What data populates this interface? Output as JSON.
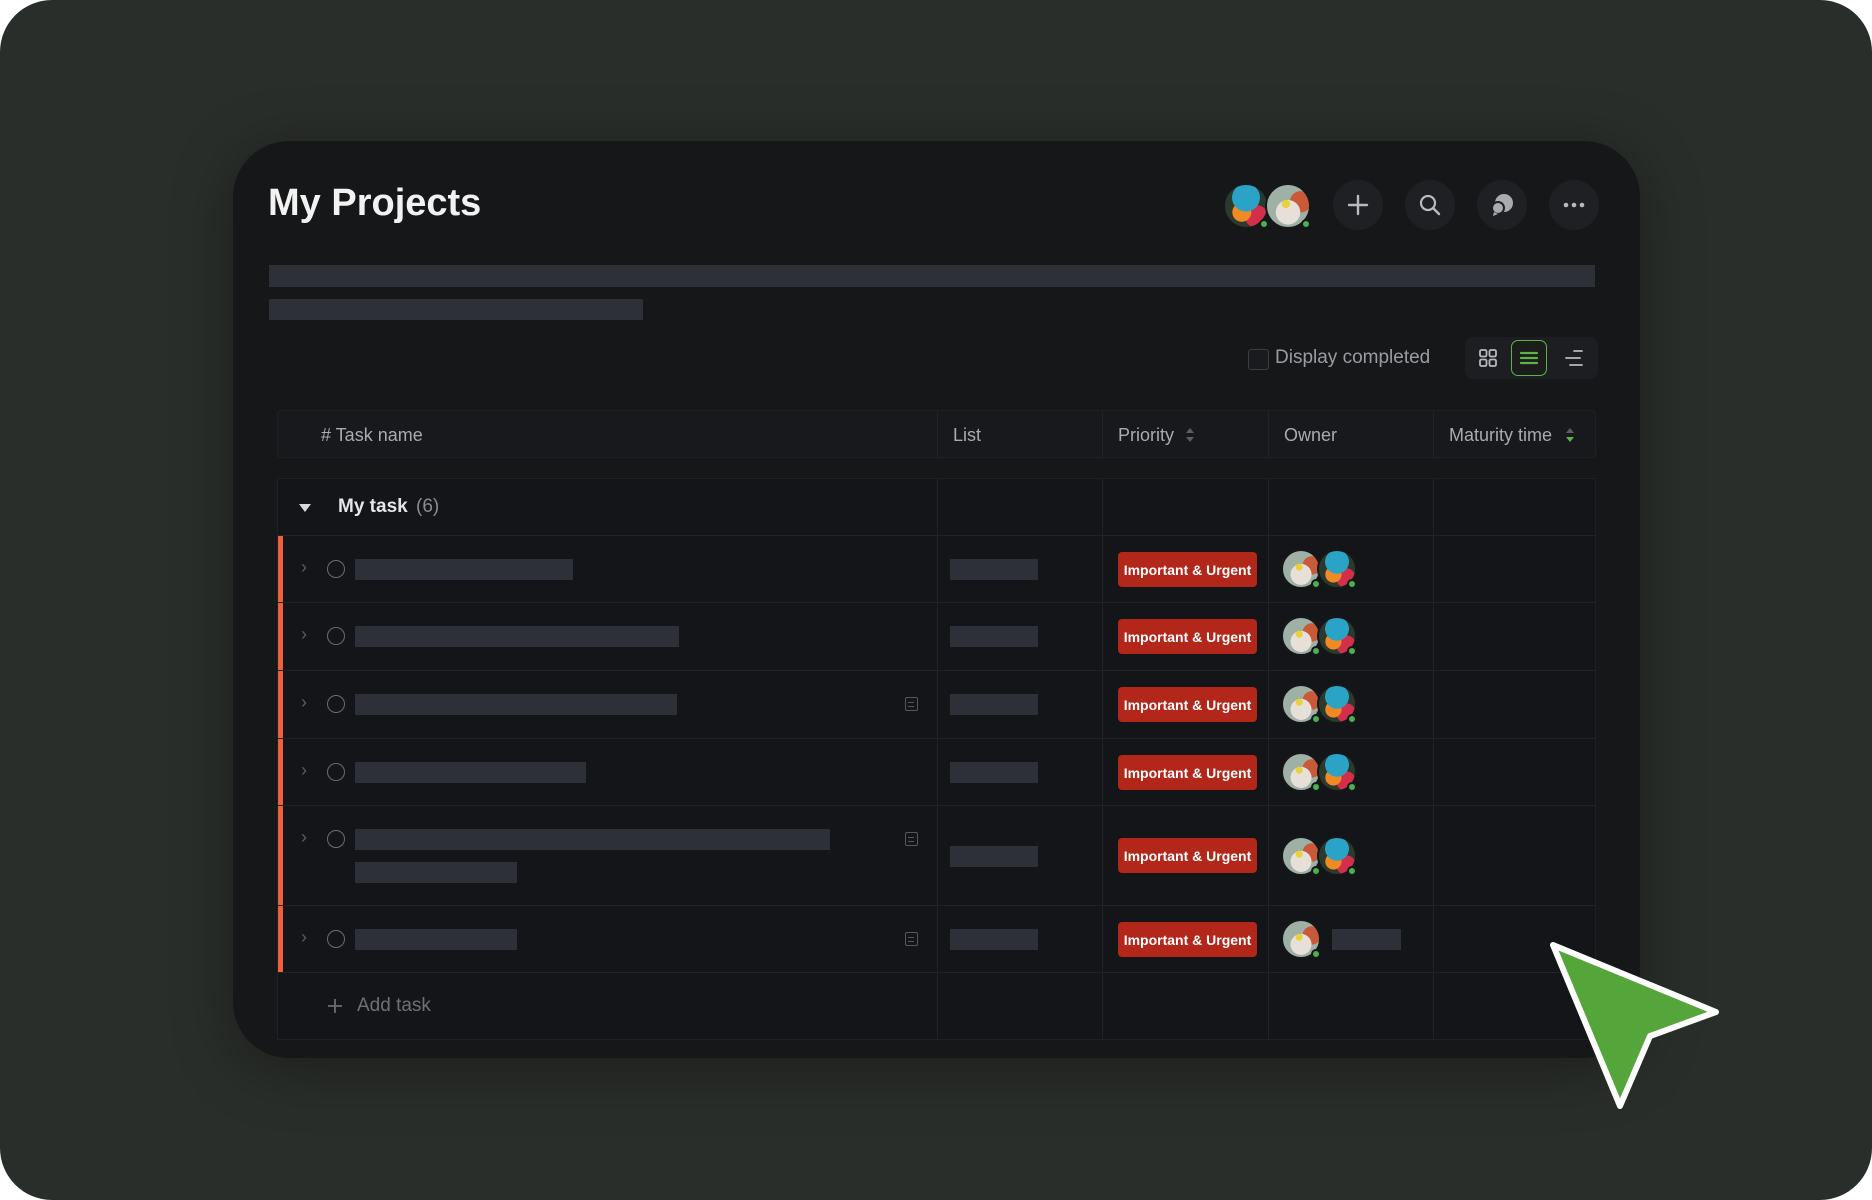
{
  "header": {
    "title": "My Projects",
    "member_avatars": [
      "user-avatar-1",
      "user-avatar-2"
    ],
    "actions": [
      {
        "name": "add-button",
        "icon": "plus-icon"
      },
      {
        "name": "search-button",
        "icon": "search-icon"
      },
      {
        "name": "chat-button",
        "icon": "chat-bubbles-icon"
      },
      {
        "name": "more-button",
        "icon": "more-horizontal-icon"
      }
    ]
  },
  "toolbar": {
    "display_completed_label": "Display completed",
    "display_completed_checked": false,
    "views": [
      "grid-view",
      "list-view",
      "gantt-view"
    ],
    "active_view": "list-view",
    "accent_color": "#5fb14a"
  },
  "table": {
    "columns": {
      "task_name": "# Task name",
      "list": "List",
      "priority": "Priority",
      "owner": "Owner",
      "maturity_time": "Maturity time"
    },
    "group": {
      "label": "My task",
      "count": "(6)",
      "expanded": true
    },
    "rows": [
      {
        "priority": "Important & Urgent",
        "owners": 2,
        "has_description": false
      },
      {
        "priority": "Important & Urgent",
        "owners": 2,
        "has_description": false
      },
      {
        "priority": "Important & Urgent",
        "owners": 2,
        "has_description": true
      },
      {
        "priority": "Important & Urgent",
        "owners": 2,
        "has_description": false
      },
      {
        "priority": "Important & Urgent",
        "owners": 2,
        "has_description": true
      },
      {
        "priority": "Important & Urgent",
        "owners": 1,
        "has_description": true
      }
    ],
    "add_task_label": "Add task",
    "priority_color": "#b3261a",
    "group_marker_color": "#f0603a"
  },
  "cursor": {
    "color": "#55a63a"
  }
}
